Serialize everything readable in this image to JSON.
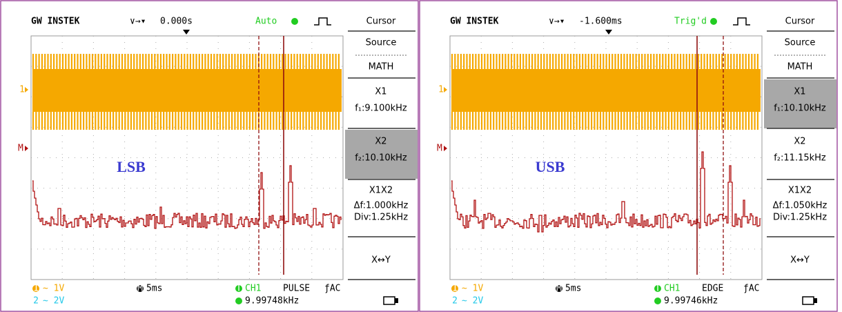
{
  "panels": [
    {
      "brand": "GW INSTEK",
      "position_symbol": "∨→▾",
      "time_offset": "0.000s",
      "trigger_status": "Auto",
      "ch1_marker": "1",
      "math_marker": "M",
      "annotation": "LSB",
      "menu": {
        "title": "Cursor",
        "source_label": "Source",
        "source_value": "MATH",
        "x1_label": "X1",
        "x1_value": "f₁:9.100kHz",
        "x2_label": "X2",
        "x2_value": "f₂:10.10kHz",
        "delta_label": "X1X2",
        "delta_value": "Δf:1.000kHz",
        "div_value": "Div:1.25kHz",
        "swap_label": "X↔Y"
      },
      "footer": {
        "ch1_number": "1",
        "ch1_scale": "∼ 1V",
        "ch2_number": "2",
        "ch2_scale": "∼ 2V",
        "timebase_icon": "M",
        "timebase": "5ms",
        "trigger_icon": "T",
        "trigger_source": "CH1",
        "trigger_type": "PULSE",
        "coupling": "ƒAC",
        "frequency": "9.99748kHz"
      }
    },
    {
      "brand": "GW INSTEK",
      "position_symbol": "∨→▾",
      "time_offset": "-1.600ms",
      "trigger_status": "Trig'd",
      "ch1_marker": "1",
      "math_marker": "M",
      "annotation": "USB",
      "menu": {
        "title": "Cursor",
        "source_label": "Source",
        "source_value": "MATH",
        "x1_label": "X1",
        "x1_value": "f₁:10.10kHz",
        "x2_label": "X2",
        "x2_value": "f₂:11.15kHz",
        "delta_label": "X1X2",
        "delta_value": "Δf:1.050kHz",
        "div_value": "Div:1.25kHz",
        "swap_label": "X↔Y"
      },
      "footer": {
        "ch1_number": "1",
        "ch1_scale": "∼ 1V",
        "ch2_number": "2",
        "ch2_scale": "∼ 2V",
        "timebase_icon": "M",
        "timebase": "5ms",
        "trigger_icon": "T",
        "trigger_source": "CH1",
        "trigger_type": "EDGE",
        "coupling": "ƒAC",
        "frequency": "9.99746kHz"
      }
    }
  ]
}
